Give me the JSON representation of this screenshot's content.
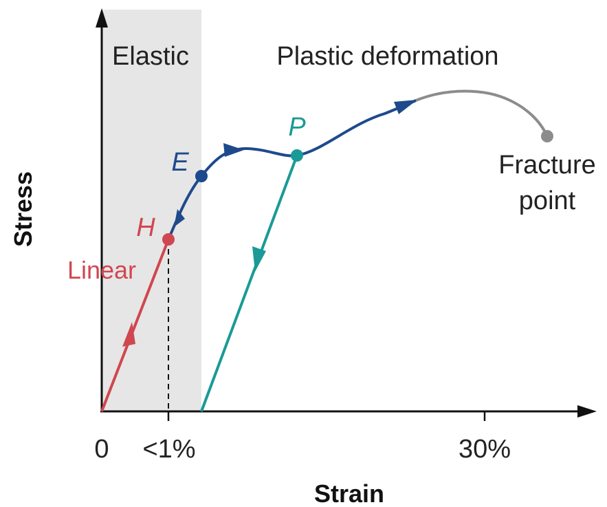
{
  "regions": {
    "elastic": "Elastic",
    "plastic": "Plastic deformation"
  },
  "axes": {
    "x_label": "Strain",
    "y_label": "Stress",
    "ticks": {
      "origin": "0",
      "proportional_limit": "<1%",
      "thirty": "30%"
    }
  },
  "points": {
    "H": "H",
    "E": "E",
    "P": "P"
  },
  "labels": {
    "linear": "Linear",
    "fracture_line1": "Fracture",
    "fracture_line2": "point"
  },
  "colors": {
    "linear": "#d0474f",
    "elastic_plastic_curve": "#1e4a8c",
    "unloading": "#1a9a96",
    "fracture": "#8c8c8c",
    "elastic_region": "#e6e6e6",
    "axes": "#111111",
    "text": "#222222"
  }
}
